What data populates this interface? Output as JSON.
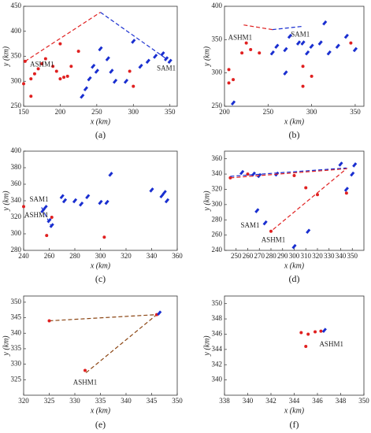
{
  "chart_data": [
    {
      "type": "scatter",
      "caption": "(a)",
      "xlabel": "x (km)",
      "ylabel": "y (km)",
      "xlim": [
        150,
        360
      ],
      "xticks": [
        150,
        200,
        250,
        300,
        350
      ],
      "ylim": [
        250,
        450
      ],
      "yticks": [
        250,
        300,
        350,
        400,
        450
      ],
      "series": [
        {
          "color": "#e02020",
          "mode": "markers",
          "x": [
            152,
            160,
            165,
            170,
            175,
            180,
            190,
            195,
            200,
            205,
            210,
            215,
            225,
            160,
            150,
            300,
            295,
            200
          ],
          "values": [
            340,
            305,
            315,
            325,
            335,
            345,
            330,
            320,
            305,
            308,
            310,
            330,
            360,
            270,
            295,
            290,
            320,
            375
          ]
        },
        {
          "color": "#1a2fd0",
          "mode": "markers",
          "x": [
            255,
            245,
            240,
            235,
            230,
            270,
            275,
            290,
            310,
            320,
            330,
            340,
            345,
            350,
            300,
            265,
            250
          ],
          "values": [
            365,
            330,
            305,
            285,
            270,
            320,
            300,
            300,
            330,
            340,
            350,
            355,
            345,
            340,
            380,
            345,
            320
          ]
        },
        {
          "color": "#e02020",
          "mode": "dashed",
          "x": [
            152,
            255
          ],
          "values": [
            340,
            438
          ]
        },
        {
          "color": "#1a2fd0",
          "mode": "dashed",
          "x": [
            255,
            345
          ],
          "values": [
            438,
            345
          ]
        }
      ],
      "annotations": [
        {
          "text": "ASHM1",
          "x": 175,
          "y": 333,
          "color": "#e02020"
        },
        {
          "text": "SAM1",
          "x": 345,
          "y": 325,
          "color": "#1a2fd0"
        }
      ]
    },
    {
      "type": "scatter",
      "caption": "(b)",
      "xlabel": "x (km)",
      "ylabel": "y (km)",
      "xlim": [
        200,
        360
      ],
      "xticks": [
        200,
        250,
        300,
        350
      ],
      "ylim": [
        250,
        400
      ],
      "yticks": [
        250,
        300,
        350,
        400
      ],
      "series": [
        {
          "color": "#e02020",
          "mode": "markers",
          "x": [
            205,
            210,
            205,
            225,
            230,
            220,
            290,
            300,
            290,
            240,
            345
          ],
          "values": [
            285,
            290,
            305,
            345,
            335,
            330,
            280,
            295,
            310,
            330,
            345
          ]
        },
        {
          "color": "#1a2fd0",
          "mode": "markers",
          "x": [
            210,
            255,
            270,
            275,
            285,
            290,
            295,
            300,
            310,
            320,
            330,
            340,
            350,
            270,
            315,
            260
          ],
          "values": [
            255,
            330,
            335,
            355,
            345,
            345,
            330,
            340,
            345,
            330,
            340,
            355,
            335,
            300,
            375,
            340
          ]
        },
        {
          "color": "#e02020",
          "mode": "dashed",
          "x": [
            222,
            255
          ],
          "values": [
            372,
            365
          ]
        },
        {
          "color": "#1a2fd0",
          "mode": "dashed",
          "x": [
            255,
            290
          ],
          "values": [
            365,
            370
          ]
        }
      ],
      "annotations": [
        {
          "text": "ASHM1",
          "x": 218,
          "y": 352,
          "color": "#e02020"
        },
        {
          "text": "SAM1",
          "x": 287,
          "y": 357,
          "color": "#1a2fd0"
        }
      ]
    },
    {
      "type": "scatter",
      "caption": "(c)",
      "xlabel": "x (km)",
      "ylabel": "y (km)",
      "xlim": [
        240,
        360
      ],
      "xticks": [
        240,
        260,
        280,
        300,
        320,
        340,
        360
      ],
      "ylim": [
        280,
        400
      ],
      "yticks": [
        280,
        300,
        320,
        340,
        360,
        380,
        400
      ],
      "series": [
        {
          "color": "#e02020",
          "mode": "markers",
          "x": [
            240,
            258,
            303,
            262
          ],
          "values": [
            333,
            298,
            296,
            320
          ]
        },
        {
          "color": "#1a2fd0",
          "mode": "markers",
          "x": [
            255,
            257,
            260,
            262,
            270,
            272,
            280,
            285,
            290,
            300,
            305,
            308,
            340,
            348,
            352,
            350
          ],
          "values": [
            328,
            332,
            316,
            310,
            345,
            340,
            340,
            336,
            345,
            338,
            338,
            372,
            353,
            346,
            340,
            350
          ]
        },
        {
          "color": "#1a2fd0",
          "mode": "dashed",
          "x": [
            254,
            262
          ],
          "values": [
            332,
            308
          ]
        }
      ],
      "annotations": [
        {
          "text": "SAM1",
          "x": 252,
          "y": 341,
          "color": "#1a2fd0"
        },
        {
          "text": "ASHM1",
          "x": 250,
          "y": 322,
          "color": "#e02020"
        }
      ]
    },
    {
      "type": "scatter",
      "caption": "(d)",
      "xlabel": "x (km)",
      "ylabel": "y (km)",
      "xlim": [
        240,
        360
      ],
      "xticks": [
        250,
        260,
        270,
        280,
        290,
        300,
        310,
        320,
        330,
        340,
        350
      ],
      "ylim": [
        240,
        370
      ],
      "yticks": [
        240,
        260,
        280,
        300,
        320,
        340,
        360
      ],
      "series": [
        {
          "color": "#e02020",
          "mode": "markers",
          "x": [
            245,
            260,
            300,
            310,
            320,
            280,
            345
          ],
          "values": [
            335,
            340,
            338,
            322,
            313,
            265,
            315
          ]
        },
        {
          "color": "#1a2fd0",
          "mode": "markers",
          "x": [
            255,
            265,
            268,
            275,
            270,
            285,
            300,
            312,
            340,
            345,
            350,
            352
          ],
          "values": [
            342,
            340,
            292,
            276,
            338,
            340,
            245,
            265,
            353,
            320,
            340,
            352
          ]
        },
        {
          "color": "#e02020",
          "mode": "dashed",
          "x": [
            245,
            345,
            280
          ],
          "values": [
            335,
            347,
            265
          ]
        },
        {
          "color": "#1a2fd0",
          "mode": "dashed",
          "x": [
            245,
            345
          ],
          "values": [
            337,
            348
          ]
        }
      ],
      "annotations": [
        {
          "text": "SAM1",
          "x": 262,
          "y": 272,
          "color": "#1a2fd0"
        },
        {
          "text": "ASHM1",
          "x": 282,
          "y": 253,
          "color": "#e02020"
        }
      ]
    },
    {
      "type": "scatter",
      "caption": "(e)",
      "xlabel": "x (km)",
      "ylabel": "y (km)",
      "xlim": [
        320,
        350
      ],
      "xticks": [
        320,
        325,
        330,
        335,
        340,
        345,
        350
      ],
      "ylim": [
        320,
        352
      ],
      "yticks": [
        325,
        330,
        335,
        340,
        345,
        350
      ],
      "series": [
        {
          "color": "#8b4513",
          "mode": "dashed",
          "x": [
            325,
            346,
            332
          ],
          "values": [
            344,
            346,
            327
          ]
        },
        {
          "color": "#e02020",
          "mode": "markers",
          "x": [
            325,
            332,
            346
          ],
          "values": [
            344,
            328,
            346
          ]
        },
        {
          "color": "#1a2fd0",
          "mode": "markers",
          "x": [
            346.5
          ],
          "values": [
            346.5
          ]
        }
      ],
      "annotations": [
        {
          "text": "ASHM1",
          "x": 332,
          "y": 324,
          "color": "#e02020"
        }
      ]
    },
    {
      "type": "scatter",
      "caption": "(f)",
      "xlabel": "x (km)",
      "ylabel": "y (km)",
      "xlim": [
        338,
        350
      ],
      "xticks": [
        338,
        340,
        342,
        344,
        346,
        348,
        350
      ],
      "ylim": [
        338,
        351
      ],
      "yticks": [
        340,
        342,
        344,
        346,
        348,
        350
      ],
      "series": [
        {
          "color": "#e02020",
          "mode": "markers",
          "x": [
            344.6,
            345,
            345.2,
            345.8,
            346.3
          ],
          "values": [
            346.2,
            344.4,
            346,
            346.3,
            346.4
          ]
        },
        {
          "color": "#1a2fd0",
          "mode": "markers",
          "x": [
            346.6
          ],
          "values": [
            346.5
          ]
        }
      ],
      "annotations": [
        {
          "text": "ASHM1",
          "x": 347.2,
          "y": 344.6,
          "color": "#e02020"
        }
      ]
    }
  ]
}
